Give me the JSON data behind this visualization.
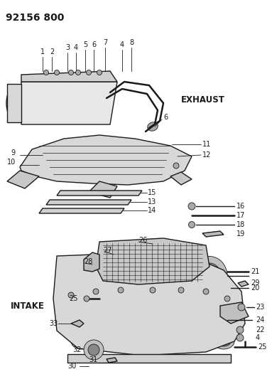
{
  "title": "92156 800",
  "exhaust_label": "EXHAUST",
  "intake_label": "INTAKE",
  "bg_color": "#ffffff",
  "line_color": "#1a1a1a",
  "title_fontsize": 10,
  "label_fontsize": 8.5,
  "number_fontsize": 7,
  "fig_width": 3.83,
  "fig_height": 5.33,
  "dpi": 100
}
